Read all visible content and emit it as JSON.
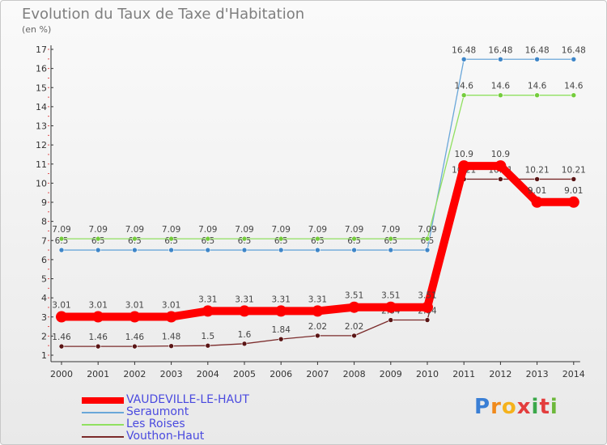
{
  "header": {
    "title": "Evolution du Taux de Taxe d'Habitation",
    "unit": "(en %)"
  },
  "logo": {
    "text": "Proxiti"
  },
  "chart_data": {
    "type": "line",
    "title": "Evolution du Taux de Taxe d'Habitation",
    "ylabel": "(en %)",
    "x": [
      2000,
      2001,
      2002,
      2003,
      2004,
      2005,
      2006,
      2007,
      2008,
      2009,
      2010,
      2011,
      2012,
      2013,
      2014
    ],
    "ylim": [
      1,
      17
    ],
    "yticks": [
      1,
      2,
      3,
      4,
      5,
      6,
      7,
      8,
      9,
      10,
      11,
      12,
      13,
      14,
      15,
      16,
      17
    ],
    "grid": false,
    "legend_position": "bottom-left",
    "series": [
      {
        "name": "Vouthon-Haut",
        "color": "#7b2b2b",
        "marker": "#5a1515",
        "values": [
          1.46,
          1.46,
          1.46,
          1.48,
          1.5,
          1.6,
          1.84,
          2.02,
          2.02,
          2.84,
          2.84,
          10.21,
          10.21,
          10.21,
          10.21
        ],
        "labels": [
          "1.46",
          "1.46",
          "1.46",
          "1.48",
          "1.5",
          "1.6",
          "1.84",
          "2.02",
          "2.02",
          "2.84",
          "2.84",
          "10.21",
          "10.21",
          "10.21",
          "10.21"
        ]
      },
      {
        "name": "Seraumont",
        "color": "#6aa7d9",
        "marker": "#3f86c8",
        "values": [
          6.5,
          6.5,
          6.5,
          6.5,
          6.5,
          6.5,
          6.5,
          6.5,
          6.5,
          6.5,
          6.5,
          16.48,
          16.48,
          16.48,
          16.48
        ],
        "labels": [
          "6.5",
          "6.5",
          "6.5",
          "6.5",
          "6.5",
          "6.5",
          "6.5",
          "6.5",
          "6.5",
          "6.5",
          "6.5",
          "16.48",
          "16.48",
          "16.48",
          "16.48"
        ]
      },
      {
        "name": "Les Roises",
        "color": "#90e060",
        "marker": "#74cc3c",
        "values": [
          7.09,
          7.09,
          7.09,
          7.09,
          7.09,
          7.09,
          7.09,
          7.09,
          7.09,
          7.09,
          7.09,
          14.6,
          14.6,
          14.6,
          14.6
        ],
        "labels": [
          "7.09",
          "7.09",
          "7.09",
          "7.09",
          "7.09",
          "7.09",
          "7.09",
          "7.09",
          "7.09",
          "7.09",
          "7.09",
          "14.6",
          "14.6",
          "14.6",
          "14.6"
        ]
      },
      {
        "name": "VAUDEVILLE-LE-HAUT",
        "color": "#ff0000",
        "marker": "#ff0000",
        "values": [
          3.01,
          3.01,
          3.01,
          3.01,
          3.31,
          3.31,
          3.31,
          3.31,
          3.51,
          3.51,
          3.51,
          10.9,
          10.9,
          9.01,
          9.01
        ],
        "labels": [
          "3.01",
          "3.01",
          "3.01",
          "3.01",
          "3.31",
          "3.31",
          "3.31",
          "3.31",
          "3.51",
          "3.51",
          "3.51",
          "10.9",
          "10.9",
          "9.01",
          "9.01"
        ]
      }
    ]
  }
}
